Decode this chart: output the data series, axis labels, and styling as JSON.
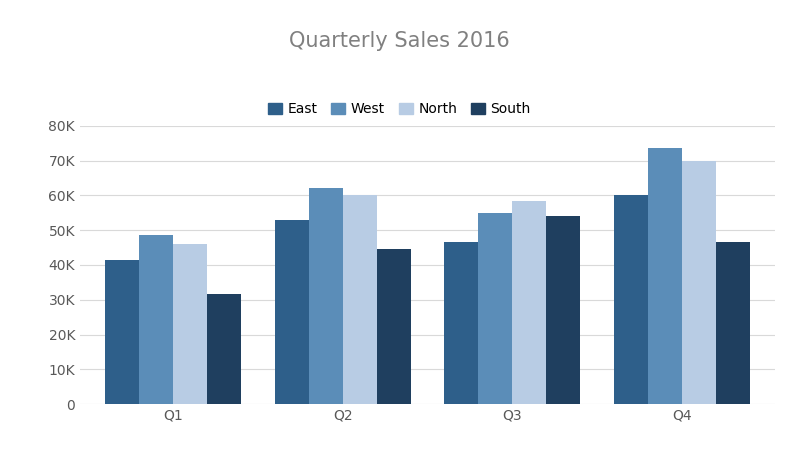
{
  "title": "Quarterly Sales 2016",
  "categories": [
    "Q1",
    "Q2",
    "Q3",
    "Q4"
  ],
  "series": [
    {
      "name": "East",
      "values": [
        41500,
        53000,
        46500,
        60000
      ],
      "color": "#2E5F8A"
    },
    {
      "name": "West",
      "values": [
        48500,
        62000,
        55000,
        73500
      ],
      "color": "#5B8DB8"
    },
    {
      "name": "North",
      "values": [
        46000,
        60000,
        58500,
        70000
      ],
      "color": "#B8CCE4"
    },
    {
      "name": "South",
      "values": [
        31500,
        44500,
        54000,
        46500
      ],
      "color": "#1F3F5F"
    }
  ],
  "ylim": [
    0,
    80000
  ],
  "yticks": [
    0,
    10000,
    20000,
    30000,
    40000,
    50000,
    60000,
    70000,
    80000
  ],
  "background_color": "#FFFFFF",
  "grid_color": "#D9D9D9",
  "title_color": "#808080",
  "title_fontsize": 15,
  "legend_fontsize": 10,
  "tick_fontsize": 10,
  "bar_width": 0.2,
  "fig_width": 7.99,
  "fig_height": 4.49
}
